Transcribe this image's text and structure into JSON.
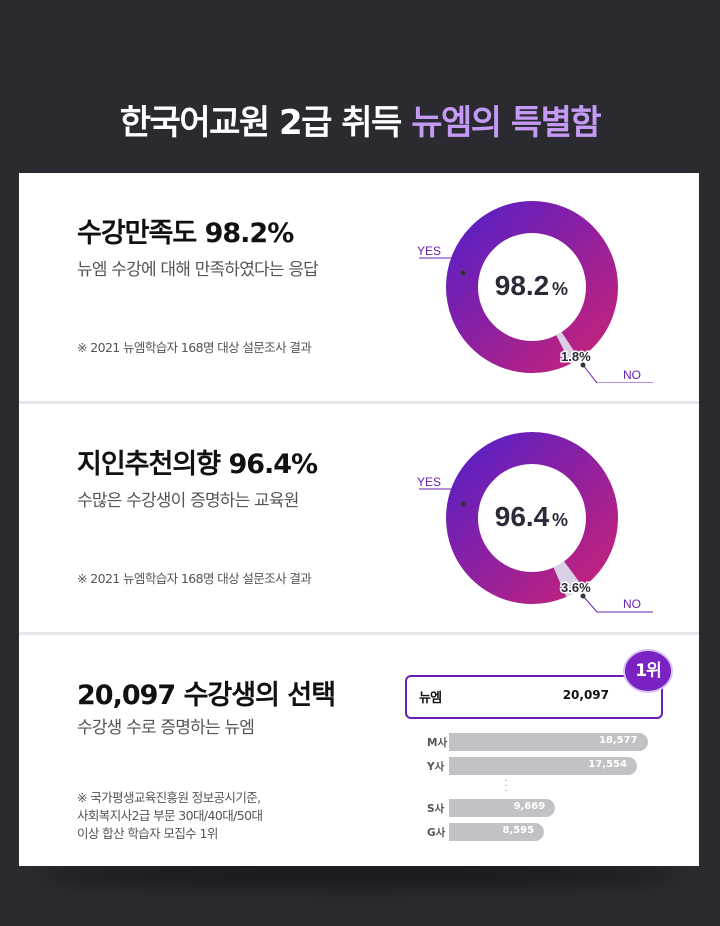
{
  "title": {
    "main": "한국어교원 2급 취득 ",
    "accent": "뉴엠의 특별함"
  },
  "colors": {
    "accent_purple": "#6a1fb4",
    "accent_magenta": "#b5237a",
    "title_accent": "#c39bf5",
    "bar_gray": "#c2c2c6"
  },
  "satisfaction": {
    "heading": "수강만족도 98.2%",
    "sub": "뉴엠 수강에 대해 만족하였다는 응답",
    "note": "※ 2021 뉴엠학습자 168명 대상 설문조사 결과",
    "center_value": "98.2",
    "center_unit": "%",
    "small_value": "1.8%",
    "yes_label": "YES",
    "no_label": "NO",
    "yes_pct": 98.2
  },
  "recommend": {
    "heading": "지인추천의향 96.4%",
    "sub": "수많은 수강생이 증명하는 교육원",
    "note": "※ 2021 뉴엠학습자 168명 대상 설문조사 결과",
    "center_value": "96.4",
    "center_unit": "%",
    "small_value": "3.6%",
    "yes_label": "YES",
    "no_label": "NO",
    "yes_pct": 96.4
  },
  "students": {
    "heading": "20,097 수강생의 선택",
    "sub": "수강생 수로 증명하는 뉴엠",
    "note_lines": [
      "※ 국가평생교육진흥원 정보공시기준,",
      "사회복지사2급 부문 30대/40대/50대",
      "이상 합산 학습자 모집수 1위"
    ],
    "badge": "1위",
    "top": {
      "name": "뉴엠",
      "value": "20,097"
    },
    "others": [
      {
        "name": "M사",
        "value": "18,577",
        "num": 18577
      },
      {
        "name": "Y사",
        "value": "17,554",
        "num": 17554
      },
      {
        "name": "S사",
        "value": "9,669",
        "num": 9669
      },
      {
        "name": "G사",
        "value": "8,595",
        "num": 8595
      }
    ],
    "top_num": 20097
  }
}
